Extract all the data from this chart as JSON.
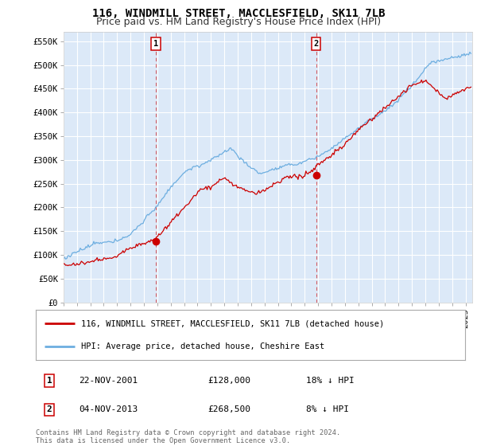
{
  "title": "116, WINDMILL STREET, MACCLESFIELD, SK11 7LB",
  "subtitle": "Price paid vs. HM Land Registry's House Price Index (HPI)",
  "ylabel_ticks": [
    "£0",
    "£50K",
    "£100K",
    "£150K",
    "£200K",
    "£250K",
    "£300K",
    "£350K",
    "£400K",
    "£450K",
    "£500K",
    "£550K"
  ],
  "ytick_values": [
    0,
    50000,
    100000,
    150000,
    200000,
    250000,
    300000,
    350000,
    400000,
    450000,
    500000,
    550000
  ],
  "ylim": [
    0,
    570000
  ],
  "xlim_start": 1995.0,
  "xlim_end": 2025.5,
  "plot_bg_color": "#dce9f8",
  "hpi_color": "#6daee0",
  "price_color": "#cc0000",
  "marker1_x": 2001.9,
  "marker1_y": 128000,
  "marker2_x": 2013.85,
  "marker2_y": 268500,
  "legend_line1": "116, WINDMILL STREET, MACCLESFIELD, SK11 7LB (detached house)",
  "legend_line2": "HPI: Average price, detached house, Cheshire East",
  "table_row1": [
    "1",
    "22-NOV-2001",
    "£128,000",
    "18% ↓ HPI"
  ],
  "table_row2": [
    "2",
    "04-NOV-2013",
    "£268,500",
    "8% ↓ HPI"
  ],
  "footnote": "Contains HM Land Registry data © Crown copyright and database right 2024.\nThis data is licensed under the Open Government Licence v3.0.",
  "title_fontsize": 10,
  "subtitle_fontsize": 9,
  "tick_fontsize": 7.5
}
